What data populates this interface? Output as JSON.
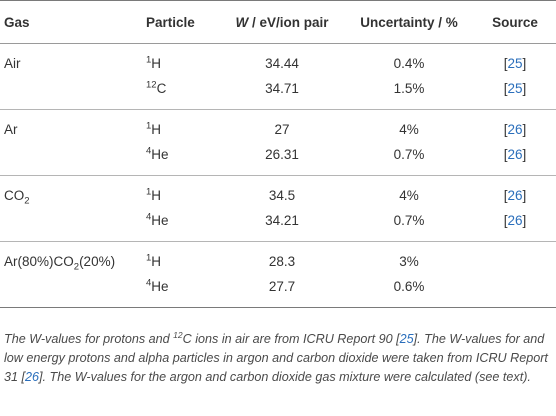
{
  "table": {
    "headers": {
      "gas": "Gas",
      "particle": "Particle",
      "w_symbol": "W",
      "w_unit": " / eV/ion pair",
      "uncertainty": "Uncertainty / %",
      "source": "Source"
    },
    "groups": [
      {
        "gas": {
          "parts": [
            "Air"
          ]
        },
        "rows": [
          {
            "particle": {
              "iso": "1",
              "symbol": "H"
            },
            "w": "34.44",
            "unc": "0.4%",
            "src": "[25]"
          },
          {
            "particle": {
              "iso": "12",
              "symbol": "C"
            },
            "w": "34.71",
            "unc": "1.5%",
            "src": "[25]"
          }
        ]
      },
      {
        "gas": {
          "parts": [
            "Ar"
          ]
        },
        "rows": [
          {
            "particle": {
              "iso": "1",
              "symbol": "H"
            },
            "w": "27",
            "unc": "4%",
            "src": "[26]"
          },
          {
            "particle": {
              "iso": "4",
              "symbol": "He"
            },
            "w": "26.31",
            "unc": "0.7%",
            "src": "[26]"
          }
        ]
      },
      {
        "gas": {
          "parts": [
            "CO",
            "2",
            ""
          ]
        },
        "rows": [
          {
            "particle": {
              "iso": "1",
              "symbol": "H"
            },
            "w": "34.5",
            "unc": "4%",
            "src": "[26]"
          },
          {
            "particle": {
              "iso": "4",
              "symbol": "He"
            },
            "w": "34.21",
            "unc": "0.7%",
            "src": "[26]"
          }
        ]
      },
      {
        "gas": {
          "parts": [
            "Ar(80%)CO",
            "2",
            "(20%)"
          ]
        },
        "rows": [
          {
            "particle": {
              "iso": "1",
              "symbol": "H"
            },
            "w": "28.3",
            "unc": "3%",
            "src": ""
          },
          {
            "particle": {
              "iso": "4",
              "symbol": "He"
            },
            "w": "27.7",
            "unc": "0.6%",
            "src": ""
          }
        ]
      }
    ]
  },
  "caption": {
    "t1": "The W-values for protons and ",
    "sup": "12",
    "t2": "C ions in air are from ICRU Report 90 [",
    "ref1": "25",
    "t3": "]. The W-values for and low energy protons and alpha particles in argon and carbon dioxide were taken from ICRU Report 31 [",
    "ref2": "26",
    "t4": "]. The W-values for the argon and carbon dioxide gas mixture were calculated (see text)."
  },
  "colors": {
    "text": "#333333",
    "caption_text": "#4a4a4a",
    "reference_link": "#2a6ebb",
    "rule": "#7a7a7a"
  }
}
